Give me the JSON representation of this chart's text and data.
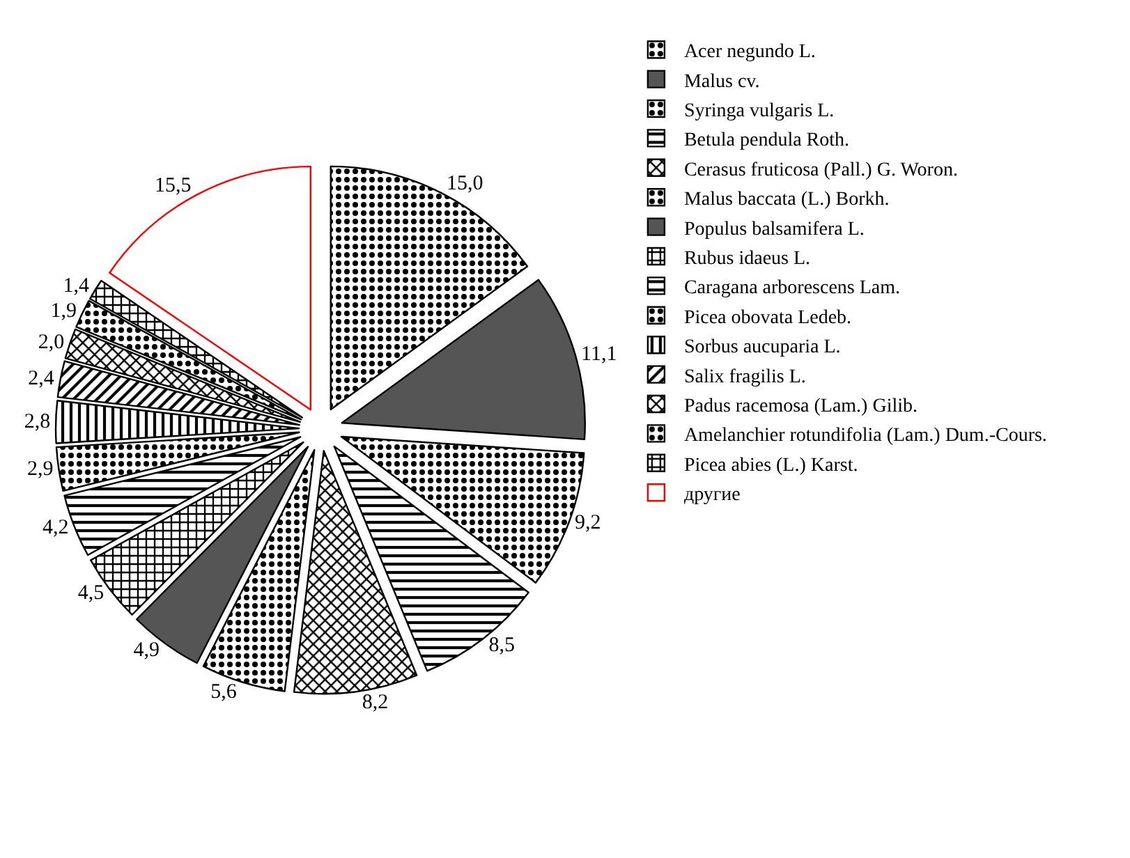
{
  "chart_data": {
    "type": "pie",
    "categories": [
      "Acer negundo L.",
      "Malus cv.",
      "Syringa vulgaris L.",
      "Betula pendula Roth.",
      "Cerasus fruticosa (Pall.) G. Woron.",
      "Malus baccata (L.) Borkh.",
      "Populus balsamifera L.",
      "Rubus idaeus L.",
      "Caragana arborescens Lam.",
      "Picea obovata Ledeb.",
      "Sorbus aucuparia L.",
      "Salix fragilis L.",
      "Padus racemosa (Lam.) Gilib.",
      "Amelanchier rotundifolia (Lam.) Dum.-Cours.",
      "Picea abies (L.) Karst.",
      "другие"
    ],
    "values": [
      15.0,
      11.1,
      9.2,
      8.5,
      8.2,
      5.6,
      4.9,
      4.5,
      4.2,
      2.9,
      2.8,
      2.4,
      2.0,
      1.9,
      1.4,
      15.5
    ],
    "value_labels": [
      "15,0",
      "11,1",
      "9,2",
      "8,5",
      "8,2",
      "5,6",
      "4,9",
      "4,5",
      "4,2",
      "2,9",
      "2,8",
      "2,4",
      "2,0",
      "1,9",
      "1,4",
      "15,5"
    ],
    "colors": [
      "#000000",
      "#555555",
      "#000000",
      "#000000",
      "#000000",
      "#000000",
      "#555555",
      "#000000",
      "#000000",
      "#000000",
      "#000000",
      "#000000",
      "#000000",
      "#000000",
      "#000000",
      "#ff0000"
    ],
    "legend": "right"
  }
}
